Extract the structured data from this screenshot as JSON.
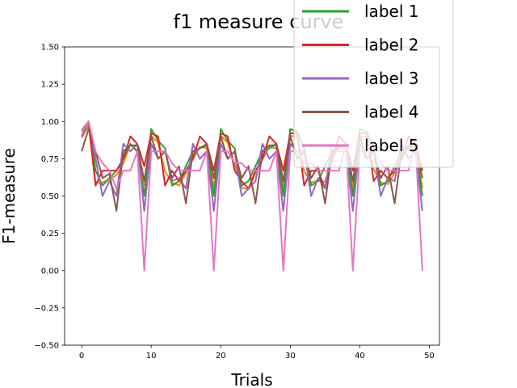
{
  "chart_data": {
    "type": "line",
    "title": "f1 measure curve",
    "xlabel": "Trials",
    "ylabel": "F1-measure",
    "xlim": [
      -2.45,
      51.45
    ],
    "ylim": [
      -0.5,
      1.5
    ],
    "xticks": [
      0,
      10,
      20,
      30,
      40,
      50
    ],
    "yticks": [
      -0.5,
      -0.25,
      0.0,
      0.25,
      0.5,
      0.75,
      1.0,
      1.25,
      1.5
    ],
    "xtick_labels": [
      "0",
      "10",
      "20",
      "30",
      "40",
      "50"
    ],
    "ytick_labels": [
      "−0.50",
      "−0.25",
      "0.00",
      "0.25",
      "0.50",
      "0.75",
      "1.00",
      "1.25",
      "1.50"
    ],
    "grid": false,
    "legend_position": "top-right",
    "x": [
      0,
      1,
      2,
      3,
      4,
      5,
      6,
      7,
      8,
      9,
      10,
      11,
      12,
      13,
      14,
      15,
      16,
      17,
      18,
      19,
      20,
      21,
      22,
      23,
      24,
      25,
      26,
      27,
      28,
      29,
      30,
      31,
      32,
      33,
      34,
      35,
      36,
      37,
      38,
      39,
      40,
      41,
      42,
      43,
      44,
      45,
      46,
      47,
      48,
      49
    ],
    "series": [
      {
        "name": "label 1",
        "color": "#2ca02c",
        "values": [
          0.94,
          1.0,
          0.67,
          0.57,
          0.62,
          0.67,
          0.75,
          0.85,
          0.8,
          0.5,
          0.95,
          0.87,
          0.82,
          0.57,
          0.6,
          0.7,
          0.8,
          0.82,
          0.85,
          0.5,
          0.95,
          0.87,
          0.82,
          0.57,
          0.6,
          0.7,
          0.8,
          0.82,
          0.85,
          0.5,
          0.95,
          0.93,
          0.82,
          0.57,
          0.6,
          0.7,
          0.8,
          0.82,
          0.85,
          0.5,
          0.95,
          0.93,
          0.82,
          0.57,
          0.6,
          0.7,
          0.8,
          0.82,
          0.85,
          0.5
        ]
      },
      {
        "name": "label 2",
        "color": "#d62728",
        "values": [
          0.9,
          1.0,
          0.57,
          0.67,
          0.67,
          0.67,
          0.75,
          0.9,
          0.85,
          0.7,
          0.92,
          0.9,
          0.57,
          0.67,
          0.6,
          0.67,
          0.75,
          0.9,
          0.85,
          0.67,
          0.92,
          0.9,
          0.67,
          0.6,
          0.55,
          0.67,
          0.75,
          0.9,
          0.85,
          0.67,
          0.92,
          0.92,
          0.57,
          0.67,
          0.67,
          0.55,
          0.75,
          0.9,
          0.85,
          0.67,
          0.92,
          0.92,
          0.6,
          0.67,
          0.62,
          0.67,
          0.75,
          0.9,
          0.85,
          0.67
        ]
      },
      {
        "name": "label 3",
        "color": "#9467bd",
        "values": [
          0.9,
          1.0,
          0.75,
          0.5,
          0.6,
          0.5,
          0.85,
          0.8,
          0.85,
          0.4,
          0.85,
          0.75,
          0.8,
          0.6,
          0.62,
          0.55,
          0.85,
          0.75,
          0.8,
          0.4,
          0.85,
          0.75,
          0.8,
          0.5,
          0.55,
          0.6,
          0.85,
          0.75,
          0.8,
          0.4,
          0.85,
          0.8,
          0.8,
          0.5,
          0.62,
          0.55,
          0.85,
          0.8,
          0.8,
          0.4,
          0.85,
          0.75,
          0.8,
          0.5,
          0.62,
          0.6,
          0.85,
          0.75,
          0.8,
          0.4
        ]
      },
      {
        "name": "label 4",
        "color": "#8c564b",
        "values": [
          0.8,
          0.95,
          0.8,
          0.62,
          0.65,
          0.4,
          0.8,
          0.84,
          0.84,
          0.6,
          0.9,
          0.75,
          0.8,
          0.62,
          0.7,
          0.45,
          0.8,
          0.82,
          0.84,
          0.62,
          0.9,
          0.75,
          0.8,
          0.62,
          0.7,
          0.45,
          0.8,
          0.84,
          0.84,
          0.6,
          0.9,
          0.75,
          0.8,
          0.62,
          0.7,
          0.45,
          0.8,
          0.84,
          0.84,
          0.6,
          0.9,
          0.75,
          0.8,
          0.62,
          0.7,
          0.45,
          0.8,
          0.84,
          0.84,
          0.62
        ]
      },
      {
        "name": "label 5",
        "color": "#e377c2",
        "values": [
          0.93,
          1.0,
          0.8,
          0.72,
          0.67,
          0.55,
          0.67,
          0.67,
          0.8,
          0.0,
          0.8,
          0.8,
          0.8,
          0.72,
          0.67,
          0.67,
          0.67,
          0.67,
          0.8,
          0.0,
          0.8,
          0.8,
          0.72,
          0.72,
          0.67,
          0.67,
          0.67,
          0.67,
          0.8,
          0.0,
          0.8,
          0.8,
          0.72,
          0.72,
          0.67,
          0.67,
          0.67,
          0.67,
          0.85,
          0.0,
          0.8,
          0.8,
          0.8,
          0.72,
          0.67,
          0.67,
          0.67,
          0.67,
          0.85,
          0.0
        ]
      }
    ],
    "hidden_series_color": "#ff7f0e"
  }
}
